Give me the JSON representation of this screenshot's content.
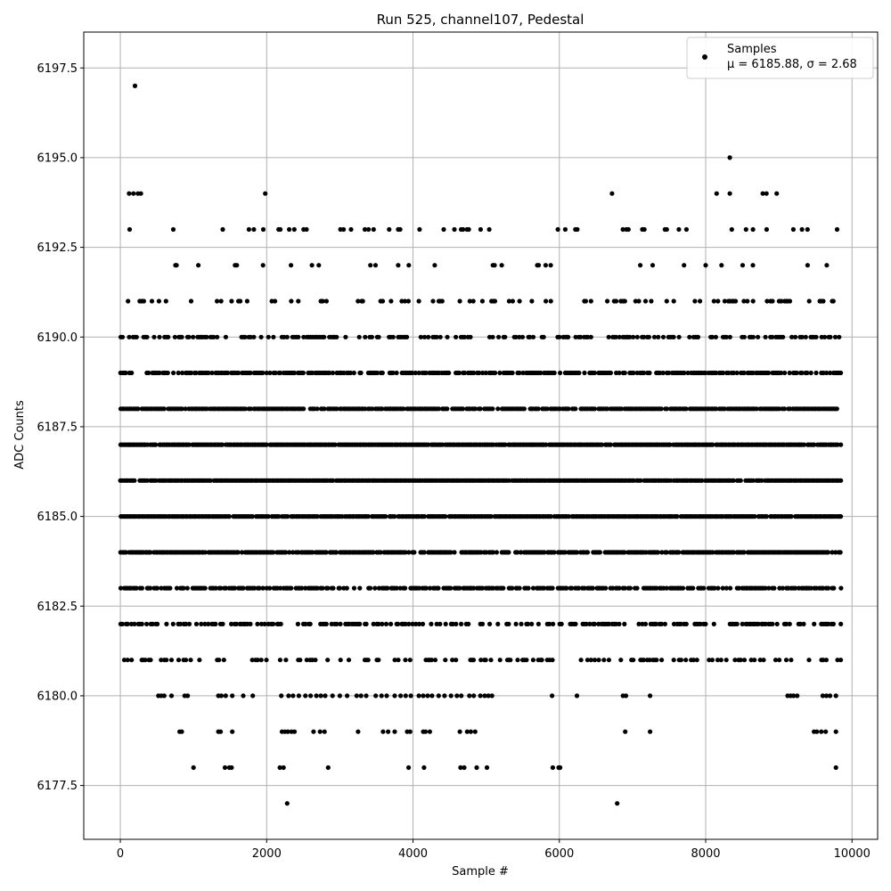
{
  "chart_data": {
    "type": "scatter",
    "title": "Run 525, channel107, Pedestal",
    "xlabel": "Sample #",
    "ylabel": "ADC Counts",
    "xlim": [
      -500,
      10350
    ],
    "ylim": [
      6176.0,
      6198.5
    ],
    "xticks": [
      0,
      2000,
      4000,
      6000,
      8000,
      10000
    ],
    "xtick_labels": [
      "0",
      "2000",
      "4000",
      "6000",
      "8000",
      "10000"
    ],
    "yticks": [
      6177.5,
      6180.0,
      6182.5,
      6185.0,
      6187.5,
      6190.0,
      6192.5,
      6195.0,
      6197.5
    ],
    "ytick_labels": [
      "6177.5",
      "6180.0",
      "6182.5",
      "6185.0",
      "6187.5",
      "6190.0",
      "6192.5",
      "6195.0",
      "6197.5"
    ],
    "grid": true,
    "legend_position": "top-right",
    "marker_color": "#000000",
    "series": [
      {
        "name": "Samples",
        "legend_label": "μ = 6185.88, σ = 2.68",
        "mean": 6185.88,
        "sigma": 2.68,
        "n_points": 9850,
        "sample_range": [
          0,
          9850
        ],
        "levels": [
          6177,
          6178,
          6179,
          6180,
          6181,
          6182,
          6183,
          6184,
          6185,
          6186,
          6187,
          6188,
          6189,
          6190,
          6191,
          6192,
          6193,
          6194,
          6195,
          6197
        ],
        "points": [
          [
            200,
            6197
          ],
          [
            8330,
            6195
          ],
          [
            120,
            6194
          ],
          [
            180,
            6194
          ],
          [
            240,
            6194
          ],
          [
            280,
            6194
          ],
          [
            1980,
            6194
          ],
          [
            6720,
            6194
          ],
          [
            8150,
            6194
          ],
          [
            8330,
            6194
          ],
          [
            8780,
            6194
          ],
          [
            8830,
            6194
          ],
          [
            8970,
            6194
          ],
          [
            2280,
            6177
          ],
          [
            6790,
            6177
          ]
        ],
        "level_spans": [
          {
            "y": 6178,
            "x": [
              1000,
              1430,
              1490,
              1520,
              2180,
              2230,
              2840,
              3940,
              4150,
              4650,
              4700,
              4870,
              5010,
              5910,
              5990,
              6010,
              9780
            ]
          },
          {
            "y": 6179,
            "x": [
              810,
              840,
              1340,
              1370,
              1530,
              2210,
              2250,
              2290,
              2340,
              2380,
              2640,
              2730,
              2790,
              3250,
              3590,
              3660,
              3750,
              3920,
              3960,
              4140,
              4170,
              4230,
              4640,
              4740,
              4790,
              4850,
              6900,
              7240,
              9480,
              9520,
              9580,
              9640,
              9780
            ]
          },
          {
            "y": 6180,
            "x": [
              520,
              560,
              600,
              700,
              880,
              920,
              1340,
              1380,
              1440,
              1530,
              1680,
              1810,
              2200,
              2300,
              2360,
              2440,
              2530,
              2600,
              2680,
              2740,
              2800,
              2900,
              3000,
              3100,
              3230,
              3290,
              3360,
              3490,
              3570,
              3640,
              3750,
              3830,
              3900,
              3970,
              4080,
              4140,
              4200,
              4260,
              4350,
              4430,
              4520,
              4600,
              4660,
              4770,
              4830,
              4920,
              4980,
              5030,
              5080,
              5900,
              6240,
              6870,
              6910,
              7240,
              9120,
              9160,
              9200,
              9250,
              9600,
              9650,
              9700,
              9780
            ]
          }
        ],
        "dense_levels": [
          6181,
          6182,
          6183,
          6184,
          6185,
          6186,
          6187,
          6188,
          6189,
          6190
        ],
        "sparse_levels": [
          6191,
          6192,
          6193
        ]
      }
    ]
  }
}
